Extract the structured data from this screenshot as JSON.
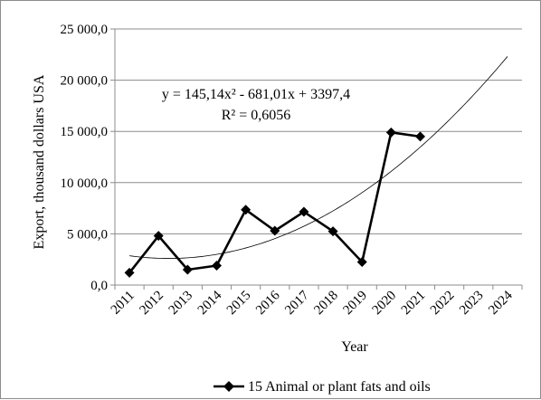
{
  "chart_data": {
    "type": "line",
    "title": "",
    "xlabel": "Year",
    "ylabel": "Export, thousand dollars USA",
    "categories": [
      "2011",
      "2012",
      "2013",
      "2014",
      "2015",
      "2016",
      "2017",
      "2018",
      "2019",
      "2020",
      "2021",
      "2022",
      "2023",
      "2024"
    ],
    "y_tick_labels": [
      "0,0",
      "5 000,0",
      "10 000,0",
      "15 000,0",
      "20 000,0",
      "25 000,0"
    ],
    "ylim": [
      0,
      25000
    ],
    "y_step": 5000,
    "grid": "horizontal",
    "series": [
      {
        "name": "15 Animal or plant fats and oils",
        "color": "#000000",
        "marker": "diamond",
        "values": [
          1200,
          4800,
          1500,
          1900,
          7350,
          5300,
          7150,
          5250,
          2250,
          14900,
          14500,
          null,
          null,
          null
        ]
      }
    ],
    "trendline": {
      "type": "polynomial",
      "order": 2,
      "coefficients": {
        "a": 145.14,
        "b": -681.01,
        "c": 3397.4
      },
      "equation_text": "y = 145,14x² - 681,01x + 3397,4",
      "r2_text": "R² = 0,6056"
    },
    "legend": {
      "position": "bottom",
      "label": "15 Animal or plant fats and oils"
    }
  }
}
